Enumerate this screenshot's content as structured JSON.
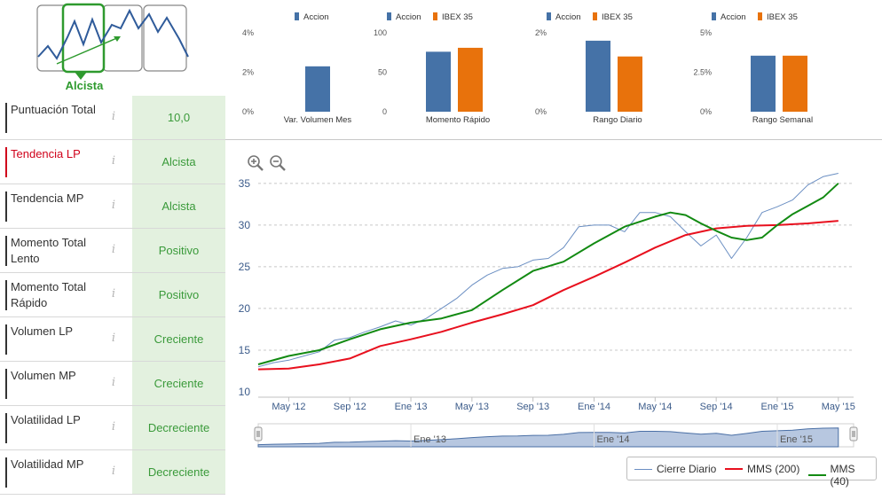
{
  "summary": {
    "trend_label": "Alcista",
    "colors": {
      "green": "#2e9a2e",
      "red": "#d0021b"
    }
  },
  "indicators": [
    {
      "label": "Puntuación Total",
      "value": "10,0",
      "highlight": false
    },
    {
      "label": "Tendencia LP",
      "value": "Alcista",
      "highlight": true
    },
    {
      "label": "Tendencia MP",
      "value": "Alcista",
      "highlight": false
    },
    {
      "label": "Momento Total Lento",
      "value": "Positivo",
      "highlight": false
    },
    {
      "label": "Momento Total Rápido",
      "value": "Positivo",
      "highlight": false
    },
    {
      "label": "Volumen LP",
      "value": "Creciente",
      "highlight": false
    },
    {
      "label": "Volumen MP",
      "value": "Creciente",
      "highlight": false
    },
    {
      "label": "Volatilidad LP",
      "value": "Decreciente",
      "highlight": false
    },
    {
      "label": "Volatilidad MP",
      "value": "Decreciente",
      "highlight": false
    }
  ],
  "info_icon_glyph": "i",
  "mini_charts": [
    {
      "title": "Var. Volumen Mes",
      "ticks": [
        "4%",
        "2%",
        "0%"
      ],
      "ymax": 4,
      "series": [
        {
          "name": "Accion",
          "value": 2.3,
          "color": "#4572a7"
        }
      ]
    },
    {
      "title": "Momento Rápido",
      "ticks": [
        "100",
        "50",
        "0"
      ],
      "ymax": 100,
      "series": [
        {
          "name": "Accion",
          "value": 76,
          "color": "#4572a7"
        },
        {
          "name": "IBEX 35",
          "value": 81,
          "color": "#e8720c"
        }
      ]
    },
    {
      "title": "Rango Diario",
      "ticks": [
        "2%",
        "",
        "0%"
      ],
      "ymax": 2,
      "series": [
        {
          "name": "Accion",
          "value": 1.8,
          "color": "#4572a7"
        },
        {
          "name": "IBEX 35",
          "value": 1.4,
          "color": "#e8720c"
        }
      ]
    },
    {
      "title": "Rango Semanal",
      "ticks": [
        "5%",
        "2.5%",
        "0%"
      ],
      "ymax": 5,
      "series": [
        {
          "name": "Accion",
          "value": 3.55,
          "color": "#4572a7"
        },
        {
          "name": "IBEX 35",
          "value": 3.55,
          "color": "#e8720c"
        }
      ]
    }
  ],
  "chart_data": {
    "type": "line",
    "title": "",
    "xlabel": "",
    "ylabel": "",
    "ylim": [
      10,
      37
    ],
    "xlim": [
      "2012-03",
      "2015-05"
    ],
    "y_ticks": [
      10,
      15,
      20,
      25,
      30,
      35
    ],
    "x_ticks": [
      {
        "label": "May '12",
        "t": 2.0
      },
      {
        "label": "Sep '12",
        "t": 6.0
      },
      {
        "label": "Ene '13",
        "t": 10.0
      },
      {
        "label": "May '13",
        "t": 14.0
      },
      {
        "label": "Sep '13",
        "t": 18.0
      },
      {
        "label": "Ene '14",
        "t": 22.0
      },
      {
        "label": "May '14",
        "t": 26.0
      },
      {
        "label": "Sep '14",
        "t": 30.0
      },
      {
        "label": "Ene '15",
        "t": 34.0
      },
      {
        "label": "May '15",
        "t": 38.0
      }
    ],
    "navigator_labels": [
      {
        "label": "Ene '13",
        "t": 10.0
      },
      {
        "label": "Ene '14",
        "t": 22.0
      },
      {
        "label": "Ene '15",
        "t": 34.0
      }
    ],
    "x_unit": "months since Mar 2012",
    "series": [
      {
        "name": "Cierre Diario",
        "color": "#6a8ec2",
        "x": [
          0,
          1,
          2,
          3,
          4,
          5,
          6,
          7,
          8,
          9,
          10,
          11,
          12,
          13,
          14,
          15,
          16,
          17,
          18,
          19,
          20,
          21,
          22,
          23,
          24,
          25,
          26,
          27,
          28,
          29,
          30,
          31,
          32,
          33,
          34,
          35,
          36,
          37,
          38
        ],
        "values": [
          13.0,
          13.5,
          13.8,
          14.3,
          14.8,
          16.2,
          16.5,
          17.2,
          17.8,
          18.5,
          18.0,
          18.8,
          20.0,
          21.2,
          22.8,
          24.0,
          24.8,
          25.0,
          25.8,
          26.0,
          27.3,
          29.8,
          30.0,
          30.0,
          29.2,
          31.5,
          31.5,
          31.0,
          29.2,
          27.5,
          28.8,
          26.0,
          28.5,
          31.5,
          32.2,
          33.0,
          34.8,
          35.8,
          36.2
        ]
      },
      {
        "name": "MMS (200)",
        "color": "#e8101e",
        "x": [
          0,
          2,
          4,
          6,
          8,
          10,
          12,
          14,
          16,
          18,
          20,
          22,
          24,
          26,
          28,
          30,
          32,
          34,
          36,
          38
        ],
        "values": [
          12.7,
          12.8,
          13.3,
          14.0,
          15.5,
          16.3,
          17.2,
          18.3,
          19.3,
          20.4,
          22.2,
          23.8,
          25.5,
          27.3,
          28.8,
          29.6,
          29.9,
          30.0,
          30.2,
          30.5
        ]
      },
      {
        "name": "MMS (40)",
        "color": "#128a12",
        "x": [
          0,
          2,
          4,
          6,
          8,
          10,
          12,
          14,
          16,
          18,
          20,
          22,
          24,
          26,
          27,
          28,
          29,
          30,
          31,
          32,
          33,
          34,
          35,
          36,
          37,
          38
        ],
        "values": [
          13.3,
          14.3,
          15.0,
          16.3,
          17.5,
          18.3,
          18.8,
          19.8,
          22.2,
          24.5,
          25.6,
          27.8,
          29.8,
          31.0,
          31.5,
          31.2,
          30.2,
          29.3,
          28.5,
          28.2,
          28.5,
          30.0,
          31.3,
          32.3,
          33.3,
          35.0
        ]
      }
    ]
  },
  "legend": [
    {
      "label": "Cierre Diario",
      "color": "#6a8ec2"
    },
    {
      "label": "MMS (200)",
      "color": "#e8101e"
    },
    {
      "label": "MMS (40)",
      "color": "#128a12"
    }
  ]
}
